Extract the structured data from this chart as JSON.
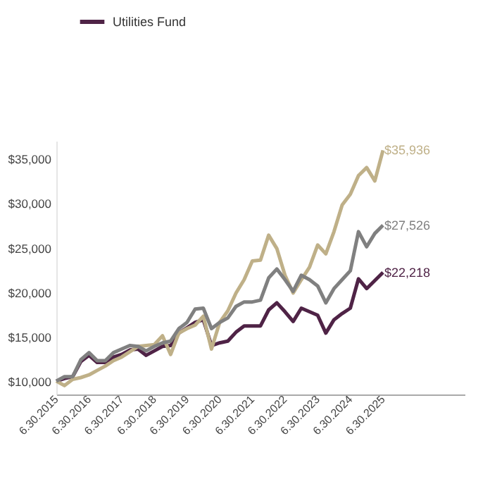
{
  "chart_data": {
    "type": "line",
    "categories": [
      "6.30.2015",
      null,
      null,
      null,
      "6.30.2016",
      null,
      null,
      null,
      "6.30.2017",
      null,
      null,
      null,
      "6.30.2018",
      null,
      null,
      null,
      "6.30.2019",
      null,
      null,
      null,
      "6.30.2020",
      null,
      null,
      null,
      "6.30.2021",
      null,
      null,
      null,
      "6.30.2022",
      null,
      null,
      null,
      "6.30.2023",
      null,
      null,
      null,
      "6.30.2024",
      null,
      null,
      null,
      "6.30.2025"
    ],
    "series": [
      {
        "name": "Utilities Fund",
        "color": "#4f2346",
        "values": [
          10000,
          10300,
          10500,
          12200,
          12900,
          12100,
          12100,
          12700,
          13000,
          13500,
          13600,
          12900,
          13400,
          13900,
          14000,
          15400,
          16000,
          16600,
          16900,
          14000,
          14300,
          14500,
          15500,
          16200,
          16200,
          16200,
          18000,
          18800,
          17800,
          16700,
          18200,
          17800,
          17400,
          15400,
          16900,
          17600,
          18200,
          21500,
          20400,
          21300,
          22218
        ],
        "value_labels": [
          null,
          null,
          null,
          null,
          null,
          null,
          null,
          null,
          null,
          null,
          null,
          null,
          null,
          null,
          null,
          null,
          null,
          null,
          null,
          null,
          null,
          null,
          null,
          null,
          null,
          null,
          null,
          null,
          null,
          null,
          null,
          null,
          null,
          null,
          null,
          null,
          null,
          null,
          null,
          null,
          "$22,218"
        ]
      },
      {
        "color": "#bfb088",
        "values": [
          10000,
          9500,
          10200,
          10400,
          10700,
          11200,
          11700,
          12300,
          12700,
          13300,
          13900,
          14000,
          14100,
          15100,
          13000,
          15400,
          15900,
          16300,
          17300,
          13600,
          16600,
          17900,
          19900,
          21400,
          23500,
          23600,
          26400,
          24900,
          21900,
          19900,
          21400,
          22800,
          25300,
          24300,
          26800,
          29800,
          31000,
          33100,
          34000,
          32500,
          35936
        ],
        "value_labels": [
          null,
          null,
          null,
          null,
          null,
          null,
          null,
          null,
          null,
          null,
          null,
          null,
          null,
          null,
          null,
          null,
          null,
          null,
          null,
          null,
          null,
          null,
          null,
          null,
          null,
          null,
          null,
          null,
          null,
          null,
          null,
          null,
          null,
          null,
          null,
          null,
          null,
          null,
          null,
          null,
          "$35,936"
        ]
      },
      {
        "color": "#808080",
        "values": [
          10000,
          10500,
          10500,
          12400,
          13200,
          12300,
          12300,
          13200,
          13600,
          14000,
          13900,
          13400,
          13900,
          14300,
          14500,
          15900,
          16600,
          18100,
          18200,
          15900,
          16600,
          17100,
          18400,
          18900,
          18900,
          19100,
          21600,
          22600,
          21400,
          20100,
          21900,
          21400,
          20700,
          18800,
          20400,
          21400,
          22400,
          26800,
          25100,
          26600,
          27526
        ],
        "value_labels": [
          null,
          null,
          null,
          null,
          null,
          null,
          null,
          null,
          null,
          null,
          null,
          null,
          null,
          null,
          null,
          null,
          null,
          null,
          null,
          null,
          null,
          null,
          null,
          null,
          null,
          null,
          null,
          null,
          null,
          null,
          null,
          null,
          null,
          null,
          null,
          null,
          null,
          null,
          null,
          null,
          "$27,526"
        ]
      }
    ],
    "ylim": [
      8500,
      37000
    ],
    "yticks": [
      {
        "value": 10000,
        "label": "$10,000"
      },
      {
        "value": 15000,
        "label": "$15,000"
      },
      {
        "value": 20000,
        "label": "$20,000"
      },
      {
        "value": 25000,
        "label": "$25,000"
      },
      {
        "value": 30000,
        "label": "$30,000"
      },
      {
        "value": 35000,
        "label": "$35,000"
      }
    ],
    "grid": false,
    "legend": "top left"
  }
}
